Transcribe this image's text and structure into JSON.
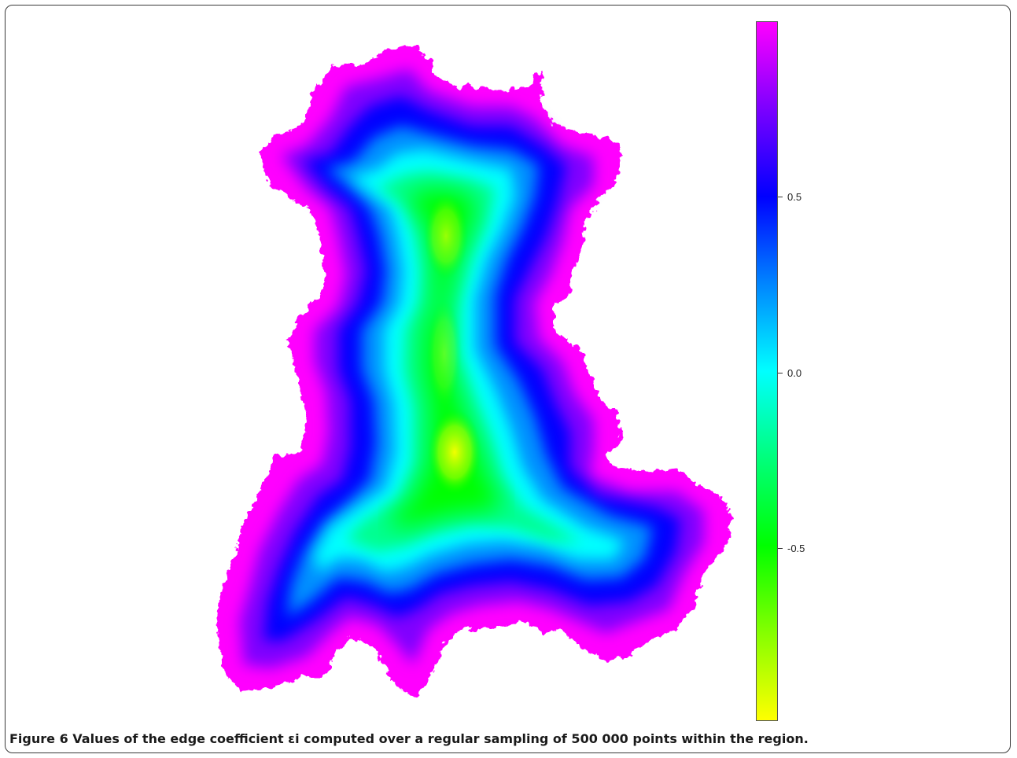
{
  "figure": {
    "label": "Figure 6",
    "caption": "Values of the edge coefficient εi computed over a regular sampling of 500 000 points within the region."
  },
  "colorbar": {
    "range": [
      -1.0,
      1.0
    ],
    "ticks": [
      {
        "value": 0.5,
        "label": "0.5"
      },
      {
        "value": 0.0,
        "label": "0.0"
      },
      {
        "value": -0.5,
        "label": "-0.5"
      }
    ],
    "colors": [
      "#ff00ff",
      "#8000ff",
      "#0000ff",
      "#0080ff",
      "#00ffff",
      "#00ff80",
      "#00ff00",
      "#80ff00",
      "#ffff00"
    ]
  },
  "map": {
    "edge_color": "#ff00ff",
    "interior_color": "#ffff00"
  }
}
